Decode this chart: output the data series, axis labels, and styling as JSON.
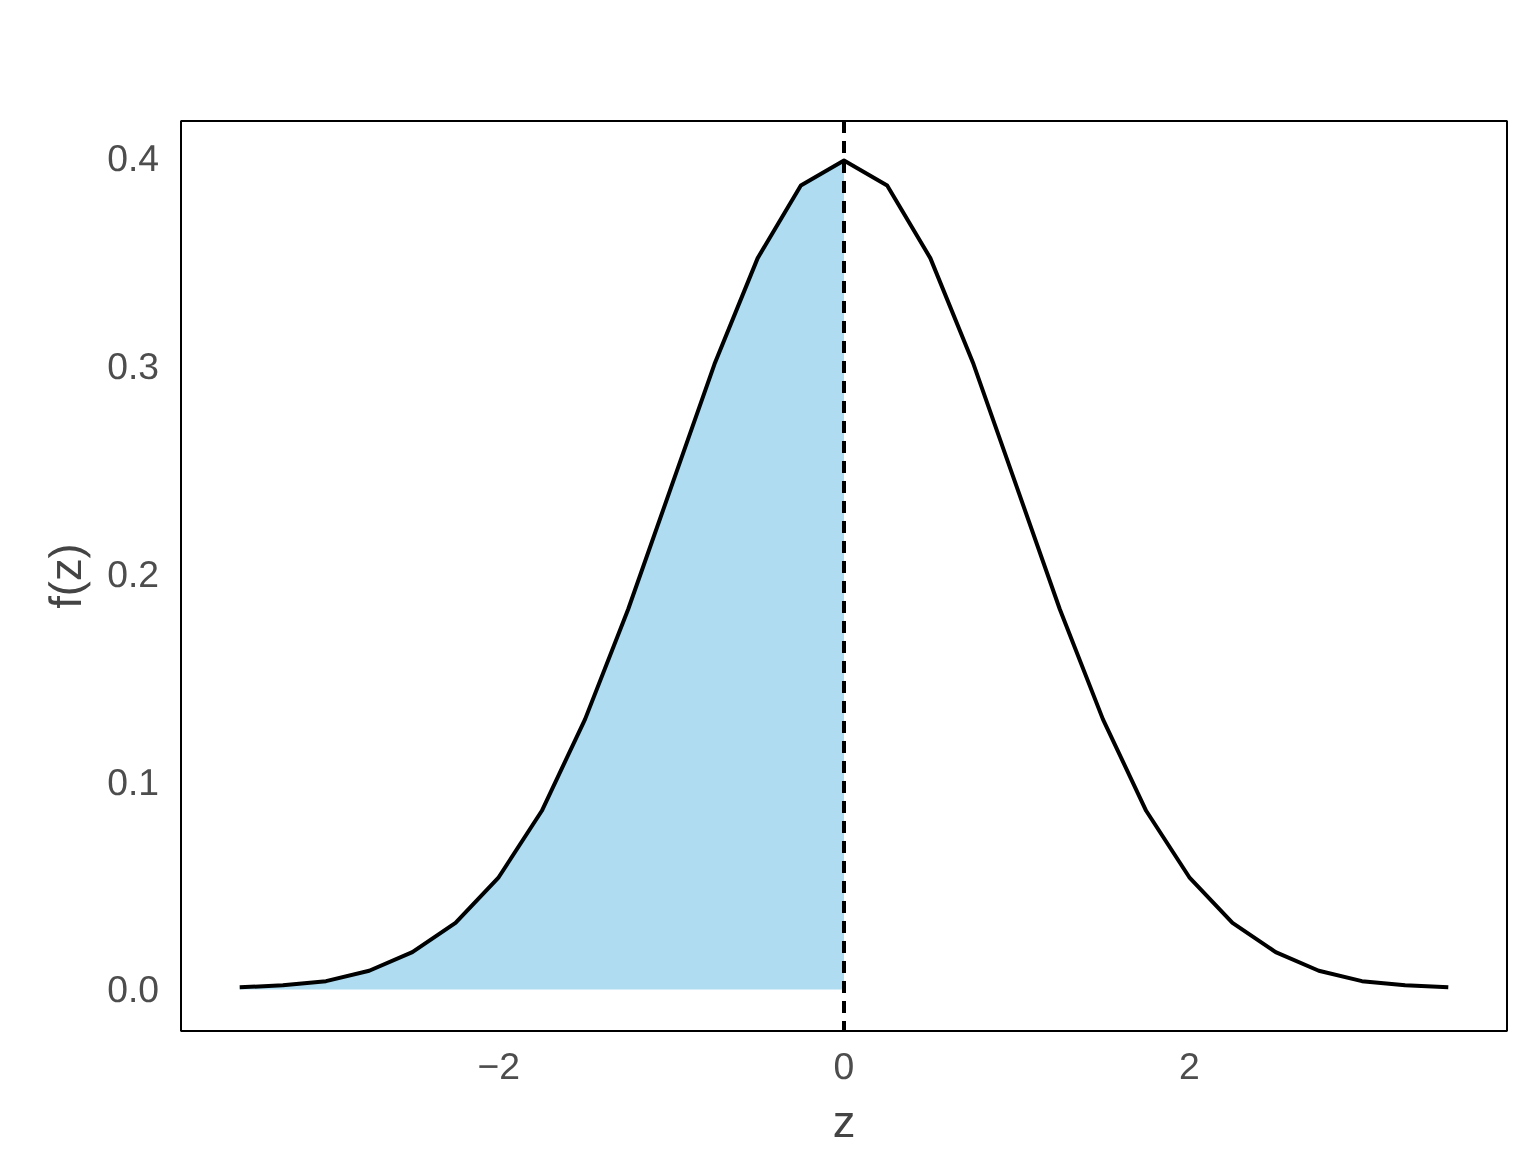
{
  "chart_data": {
    "type": "line",
    "xlabel": "z",
    "ylabel": "f(z)",
    "xlim": [
      -3.84,
      3.84
    ],
    "ylim": [
      -0.02,
      0.418
    ],
    "xticks": [
      -2,
      0,
      2
    ],
    "yticks": [
      {
        "value": 0,
        "label": "0.0"
      },
      0.1,
      0.2,
      0.3,
      0.4
    ],
    "grid": false,
    "series": [
      {
        "type": "area",
        "color": "#afdcf0",
        "x": [
          -3.5,
          -3.25,
          -3,
          -2.75,
          -2.5,
          -2.25,
          -2,
          -1.75,
          -1.5,
          -1.25,
          -1,
          -0.75,
          -0.5,
          -0.25,
          0
        ],
        "values": [
          0.001,
          0.002,
          0.004,
          0.009,
          0.018,
          0.032,
          0.054,
          0.086,
          0.13,
          0.183,
          0.242,
          0.301,
          0.352,
          0.387,
          0.399
        ]
      },
      {
        "color": "#000000",
        "x": [
          -3.5,
          -3.25,
          -3,
          -2.75,
          -2.5,
          -2.25,
          -2,
          -1.75,
          -1.5,
          -1.25,
          -1,
          -0.75,
          -0.5,
          -0.25,
          0,
          0.25,
          0.5,
          0.75,
          1,
          1.25,
          1.5,
          1.75,
          2,
          2.25,
          2.5,
          2.75,
          3,
          3.25,
          3.5
        ],
        "values": [
          0.001,
          0.002,
          0.004,
          0.009,
          0.018,
          0.032,
          0.054,
          0.086,
          0.13,
          0.183,
          0.242,
          0.301,
          0.352,
          0.387,
          0.399,
          0.387,
          0.352,
          0.301,
          0.242,
          0.183,
          0.13,
          0.086,
          0.054,
          0.032,
          0.018,
          0.009,
          0.004,
          0.002,
          0.001
        ]
      }
    ],
    "ref_lines": [
      {
        "axis": "x",
        "value": 0,
        "color": "#000000",
        "line_style": "dashed"
      }
    ]
  }
}
